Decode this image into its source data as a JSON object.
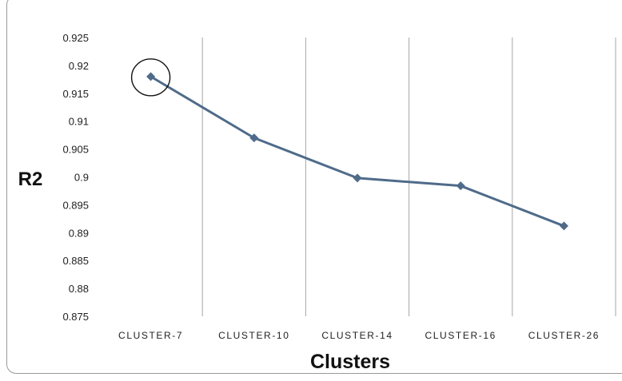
{
  "chart_data": {
    "type": "line",
    "title": "",
    "xlabel": "Clusters",
    "ylabel": "R2",
    "categories": [
      "CLUSTER-7",
      "CLUSTER-10",
      "CLUSTER-14",
      "CLUSTER-16",
      "CLUSTER-26"
    ],
    "series": [
      {
        "values": [
          0.918,
          0.907,
          0.8998,
          0.8984,
          0.8912
        ]
      }
    ],
    "ylim": [
      0.875,
      0.925
    ],
    "yticks": [
      "0.925",
      "0.92",
      "0.915",
      "0.91",
      "0.905",
      "0.9",
      "0.895",
      "0.89",
      "0.885",
      "0.88",
      "0.875"
    ],
    "grid": "vertical",
    "highlight_point": "CLUSTER-7",
    "line_color": "#4f6b8a",
    "marker": "diamond",
    "grid_color": "#a6a6a6"
  }
}
